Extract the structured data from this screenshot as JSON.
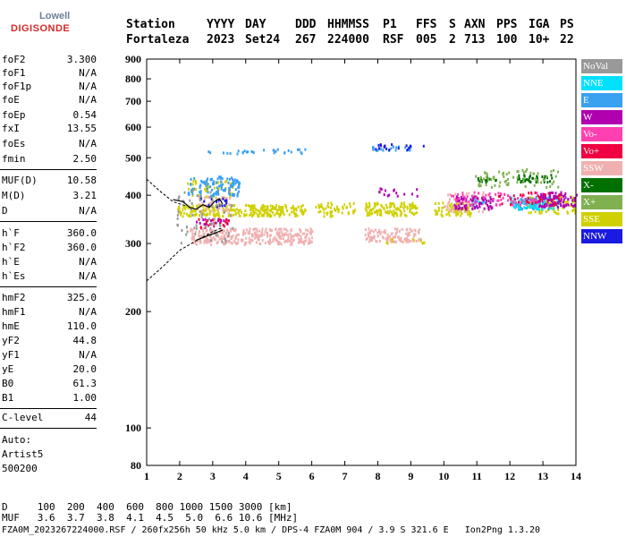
{
  "logo": {
    "top": "Lowell",
    "bottom": "DIGISONDE"
  },
  "header": {
    "col_labels": [
      "Station",
      "YYYY",
      "DAY",
      "DDD",
      "HHMMSS",
      "P1",
      "FFS",
      "S",
      "AXN",
      "PPS",
      "IGA",
      "PS"
    ],
    "col_values": [
      "Fortaleza",
      "2023",
      "Set24",
      "267",
      "224000",
      "RSF",
      "005",
      "2",
      "713",
      "100",
      "10+",
      "22"
    ]
  },
  "params": [
    {
      "name": "foF2",
      "value": "3.300"
    },
    {
      "name": "foF1",
      "value": "N/A"
    },
    {
      "name": "foF1p",
      "value": "N/A"
    },
    {
      "name": "foE",
      "value": "N/A"
    },
    {
      "name": "foEp",
      "value": "0.54"
    },
    {
      "name": "fxI",
      "value": "13.55"
    },
    {
      "name": "foEs",
      "value": "N/A"
    },
    {
      "name": "fmin",
      "value": "2.50"
    },
    {
      "name": "MUF(D)",
      "value": "10.58"
    },
    {
      "name": "M(D)",
      "value": "3.21"
    },
    {
      "name": "D",
      "value": "N/A"
    },
    {
      "name": "h`F",
      "value": "360.0"
    },
    {
      "name": "h`F2",
      "value": "360.0"
    },
    {
      "name": "h`E",
      "value": "N/A"
    },
    {
      "name": "h`Es",
      "value": "N/A"
    },
    {
      "name": "hmF2",
      "value": "325.0"
    },
    {
      "name": "hmF1",
      "value": "N/A"
    },
    {
      "name": "hmE",
      "value": "110.0"
    },
    {
      "name": "yF2",
      "value": "44.8"
    },
    {
      "name": "yF1",
      "value": "N/A"
    },
    {
      "name": "yE",
      "value": "20.0"
    },
    {
      "name": "B0",
      "value": "61.3"
    },
    {
      "name": "B1",
      "value": "1.00"
    },
    {
      "name": "C-level",
      "value": "44"
    }
  ],
  "auto": [
    "Auto:",
    "Artist5",
    "500200"
  ],
  "legend": [
    {
      "label": "NoVal",
      "color": "#999999"
    },
    {
      "label": "NNE",
      "color": "#00e0ff"
    },
    {
      "label": "E",
      "color": "#3aa0f0"
    },
    {
      "label": "W",
      "color": "#b000b0"
    },
    {
      "label": "Vo-",
      "color": "#ff40b0"
    },
    {
      "label": "Vo+",
      "color": "#f00040"
    },
    {
      "label": "SSW",
      "color": "#f0b0b0"
    },
    {
      "label": "X-",
      "color": "#007000"
    },
    {
      "label": "X+",
      "color": "#80b050"
    },
    {
      "label": "SSE",
      "color": "#d0d000"
    },
    {
      "label": "NNW",
      "color": "#1a1ae0"
    }
  ],
  "footer": {
    "d_line": "D     100  200  400  600  800 1000 1500 3000 [km]",
    "muf_line": "MUF   3.6  3.7  3.8  4.1  4.5  5.0  6.6 10.6 [MHz]",
    "file_line": "FZA0M_2023267224000.RSF / 260fx256h 50 kHz 5.0 km / DPS-4 FZA0M 904 / 3.9 S 321.6 E   Ion2Png 1.3.20"
  },
  "chart_data": {
    "type": "scatter",
    "title": "",
    "xlabel": "",
    "ylabel": "",
    "xlim": [
      1,
      14
    ],
    "ylim": [
      80,
      900
    ],
    "x_ticks": [
      1,
      2,
      3,
      4,
      5,
      6,
      7,
      8,
      9,
      10,
      11,
      12,
      13,
      14
    ],
    "y_ticks": [
      100,
      200,
      300,
      400,
      500,
      600,
      700,
      800,
      900
    ],
    "grid": false,
    "legend_position": "right",
    "y_scale": "log",
    "point_clusters": [
      {
        "mode": "SSE",
        "x_range": [
          1.9,
          5.8
        ],
        "y_range": [
          355,
          380
        ],
        "density": 0.9
      },
      {
        "mode": "SSE",
        "x_range": [
          6.1,
          6.6
        ],
        "y_range": [
          355,
          385
        ],
        "density": 0.6
      },
      {
        "mode": "SSE",
        "x_range": [
          6.6,
          7.3
        ],
        "y_range": [
          360,
          385
        ],
        "density": 0.4
      },
      {
        "mode": "SSE",
        "x_range": [
          7.6,
          9.2
        ],
        "y_range": [
          355,
          385
        ],
        "density": 0.8
      },
      {
        "mode": "SSE",
        "x_range": [
          9.7,
          10.8
        ],
        "y_range": [
          355,
          385
        ],
        "density": 0.7
      },
      {
        "mode": "SSE",
        "x_range": [
          12.5,
          14
        ],
        "y_range": [
          360,
          400
        ],
        "density": 0.5
      },
      {
        "mode": "SSE",
        "x_range": [
          8.2,
          9.5
        ],
        "y_range": [
          302,
          310
        ],
        "density": 0.5
      },
      {
        "mode": "SSE",
        "x_range": [
          2.2,
          3.6
        ],
        "y_range": [
          395,
          440
        ],
        "density": 0.3
      },
      {
        "mode": "SSW",
        "x_range": [
          2.3,
          6.0
        ],
        "y_range": [
          300,
          330
        ],
        "density": 0.8
      },
      {
        "mode": "SSW",
        "x_range": [
          7.6,
          9.3
        ],
        "y_range": [
          305,
          330
        ],
        "density": 0.7
      },
      {
        "mode": "SSW",
        "x_range": [
          2.5,
          3.5
        ],
        "y_range": [
          360,
          400
        ],
        "density": 0.3
      },
      {
        "mode": "SSW",
        "x_range": [
          10.0,
          11.2
        ],
        "y_range": [
          365,
          410
        ],
        "density": 0.3
      },
      {
        "mode": "E",
        "x_range": [
          2.2,
          3.8
        ],
        "y_range": [
          400,
          450
        ],
        "density": 0.5
      },
      {
        "mode": "E",
        "x_range": [
          2.8,
          5.8
        ],
        "y_range": [
          515,
          530
        ],
        "density": 0.3
      },
      {
        "mode": "E",
        "x_range": [
          7.8,
          9.0
        ],
        "y_range": [
          525,
          540
        ],
        "density": 0.6
      },
      {
        "mode": "E",
        "x_range": [
          12.0,
          13.2
        ],
        "y_range": [
          370,
          400
        ],
        "density": 0.5
      },
      {
        "mode": "NNE",
        "x_range": [
          12.0,
          13.5
        ],
        "y_range": [
          370,
          395
        ],
        "density": 0.6
      },
      {
        "mode": "NNE",
        "x_range": [
          10.6,
          11.2
        ],
        "y_range": [
          375,
          395
        ],
        "density": 0.3
      },
      {
        "mode": "W",
        "x_range": [
          10.3,
          11.5
        ],
        "y_range": [
          370,
          400
        ],
        "density": 0.7
      },
      {
        "mode": "W",
        "x_range": [
          12.8,
          14
        ],
        "y_range": [
          375,
          410
        ],
        "density": 0.7
      },
      {
        "mode": "W",
        "x_range": [
          2.4,
          3.5
        ],
        "y_range": [
          338,
          350
        ],
        "density": 0.4
      },
      {
        "mode": "W",
        "x_range": [
          7.9,
          9.3
        ],
        "y_range": [
          400,
          420
        ],
        "density": 0.2
      },
      {
        "mode": "Vo-",
        "x_range": [
          10.2,
          12.8
        ],
        "y_range": [
          380,
          410
        ],
        "density": 0.3
      },
      {
        "mode": "Vo+",
        "x_range": [
          2.5,
          3.5
        ],
        "y_range": [
          330,
          350
        ],
        "density": 0.3
      },
      {
        "mode": "Vo+",
        "x_range": [
          11.5,
          13.5
        ],
        "y_range": [
          380,
          410
        ],
        "density": 0.2
      },
      {
        "mode": "X-",
        "x_range": [
          11.0,
          11.6
        ],
        "y_range": [
          435,
          450
        ],
        "density": 0.6
      },
      {
        "mode": "X-",
        "x_range": [
          12.2,
          13.3
        ],
        "y_range": [
          435,
          455
        ],
        "density": 0.6
      },
      {
        "mode": "X+",
        "x_range": [
          10.9,
          13.5
        ],
        "y_range": [
          420,
          470
        ],
        "density": 0.2
      },
      {
        "mode": "NNW",
        "x_range": [
          7.9,
          9.5
        ],
        "y_range": [
          528,
          545
        ],
        "density": 0.3
      },
      {
        "mode": "NNW",
        "x_range": [
          2.6,
          3.4
        ],
        "y_range": [
          375,
          395
        ],
        "density": 0.3
      },
      {
        "mode": "NoVal",
        "x_range": [
          1.9,
          3.6
        ],
        "y_range": [
          300,
          420
        ],
        "density": 0.1
      }
    ],
    "dashed_curve": [
      [
        1.0,
        240
      ],
      [
        1.5,
        262
      ],
      [
        2.0,
        288
      ],
      [
        2.5,
        305
      ],
      [
        3.0,
        322
      ],
      [
        3.3,
        330
      ]
    ],
    "dashed_curve_upper": [
      [
        1.0,
        440
      ],
      [
        1.4,
        410
      ],
      [
        1.8,
        385
      ],
      [
        2.2,
        375
      ]
    ],
    "trace_lines": [
      [
        [
          1.8,
          390
        ],
        [
          2.1,
          385
        ],
        [
          2.3,
          372
        ],
        [
          2.5,
          368
        ],
        [
          2.7,
          378
        ],
        [
          2.9,
          372
        ],
        [
          3.05,
          385
        ],
        [
          3.2,
          392
        ],
        [
          3.3,
          380
        ]
      ],
      [
        [
          2.5,
          306
        ],
        [
          2.8,
          313
        ],
        [
          3.1,
          320
        ],
        [
          3.3,
          325
        ]
      ]
    ]
  }
}
